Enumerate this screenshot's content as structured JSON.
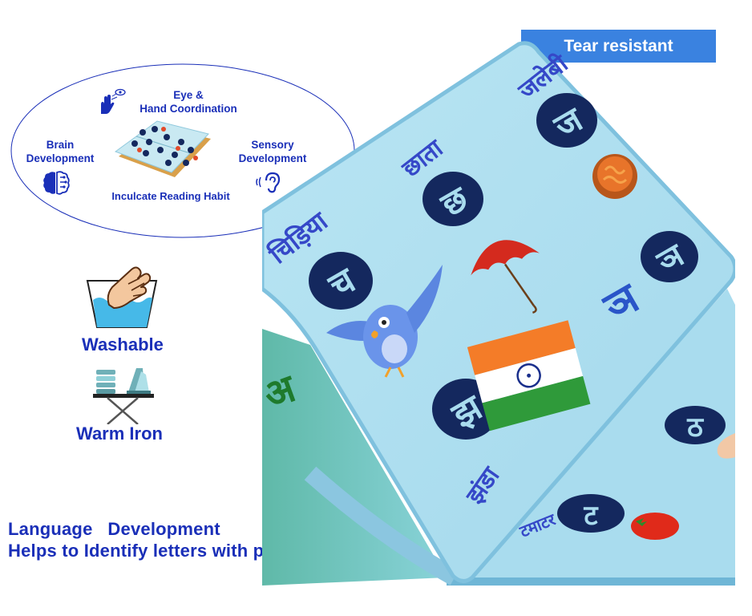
{
  "badge": {
    "tear_resistant": "Tear resistant"
  },
  "benefits": {
    "eye_hand_line1": "Eye &",
    "eye_hand_line2": "Hand Coordination",
    "brain_line1": "Brain",
    "brain_line2": "Development",
    "sensory_line1": "Sensory",
    "sensory_line2": "Development",
    "reading": "Inculcate Reading Habit"
  },
  "care": {
    "washable": "Washable",
    "warm_iron": "Warm Iron"
  },
  "footer": {
    "line1": "Language   Development",
    "line2": "Helps to Identify letters with pictures"
  },
  "book_page": {
    "words": [
      "जलेबी",
      "छाता",
      "चिड़िया",
      "झंडा",
      "टमाटर"
    ],
    "letters": [
      "ज",
      "छ",
      "च",
      "ञ",
      "झ",
      "ठ",
      "ट",
      "अ"
    ]
  },
  "colors": {
    "text_blue": "#1a2fb8",
    "badge_blue": "#3a82e0",
    "page_blue": "#a9dcee",
    "letter_navy": "#14285e"
  },
  "icons": [
    "hand-icon",
    "eye-icon",
    "brain-icon",
    "ear-icon",
    "washing-hand-icon",
    "iron-icon"
  ]
}
